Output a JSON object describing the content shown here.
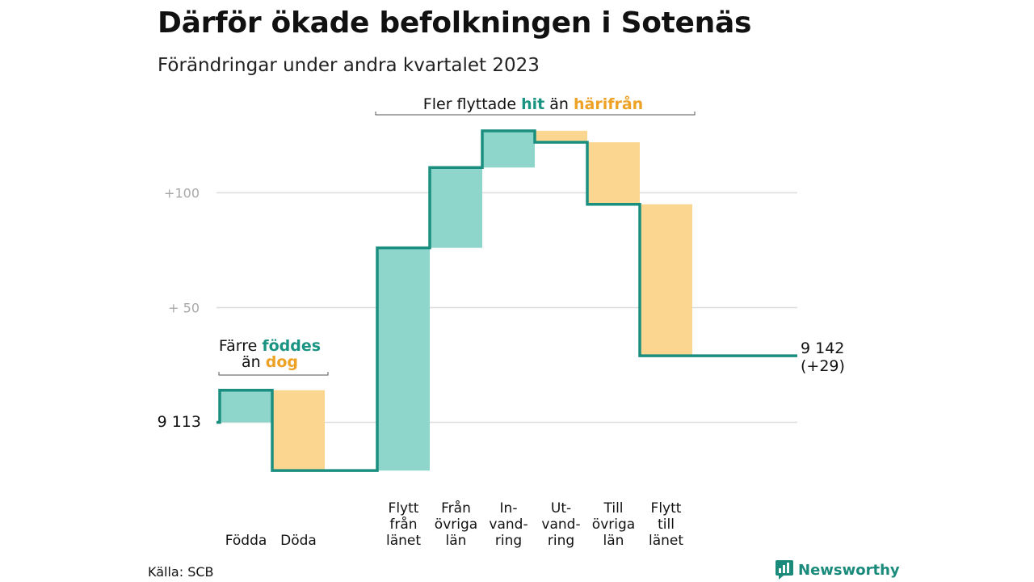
{
  "title": "Därför ökade befolkningen i Sotenäs",
  "subtitle": "Förändringar under andra kvartalet 2023",
  "source": "Källa: SCB",
  "brand": "Newsworthy",
  "colors": {
    "line": "#1a8f80",
    "increase": "#8ed6cb",
    "decrease": "#fbd690",
    "teal_text": "#1a9482",
    "orange_text": "#eda125",
    "grid": "#dddddd",
    "tick_text": "#aaaaaa"
  },
  "annotations": {
    "top_prefix": "Fler flyttade",
    "top_hit": "hit",
    "top_mid": "än",
    "top_harifran": "härifrån",
    "left_prefix": "Färre",
    "left_foddes": "föddes",
    "left_mid": "än",
    "left_dog": "dog"
  },
  "chart_data": {
    "type": "waterfall",
    "baseline": 0,
    "start_label": "9  113",
    "end_label_line1": "9 142",
    "end_label_line2": "(+29)",
    "y_ticks": [
      {
        "value": 100,
        "label": "+100"
      },
      {
        "value": 50,
        "label": "+  50"
      }
    ],
    "categories": [
      {
        "label": [
          "Födda"
        ],
        "value": 14,
        "kind": "increase"
      },
      {
        "label": [
          "Döda"
        ],
        "value": -35,
        "kind": "decrease"
      },
      {
        "label": [],
        "value": 0,
        "kind": "gap"
      },
      {
        "label": [
          "Flytt",
          "från",
          "länet"
        ],
        "value": 97,
        "kind": "increase"
      },
      {
        "label": [
          "Från",
          "övriga",
          "län"
        ],
        "value": 35,
        "kind": "increase"
      },
      {
        "label": [
          "In-",
          "vand-",
          "ring"
        ],
        "value": 16,
        "kind": "increase"
      },
      {
        "label": [
          "Ut-",
          "vand-",
          "ring"
        ],
        "value": -5,
        "kind": "decrease"
      },
      {
        "label": [
          "Till",
          "övriga",
          "län"
        ],
        "value": -27,
        "kind": "decrease"
      },
      {
        "label": [
          "Flytt",
          "till",
          "länet"
        ],
        "value": -66,
        "kind": "decrease"
      }
    ],
    "net_change": 29
  }
}
